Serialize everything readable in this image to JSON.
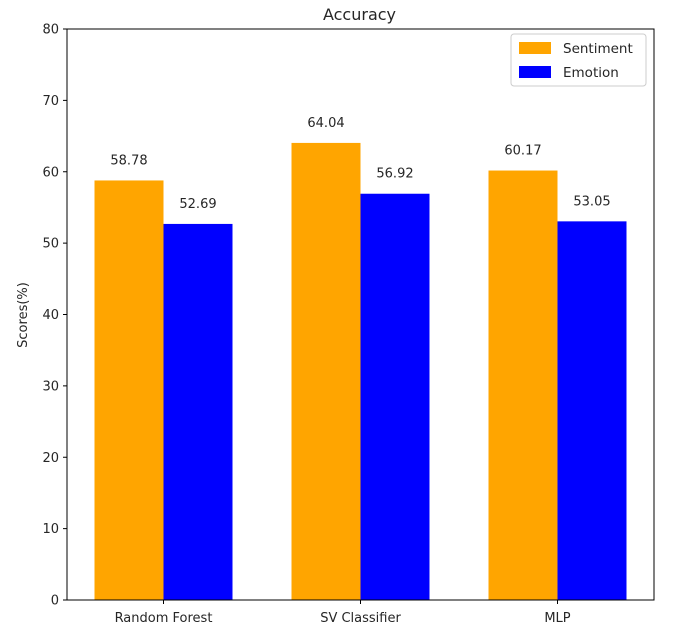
{
  "chart_data": {
    "type": "bar",
    "title": "Accuracy",
    "xlabel": "",
    "ylabel": "Scores(%)",
    "ylim": [
      0,
      80
    ],
    "yticks": [
      "0",
      "10",
      "20",
      "30",
      "40",
      "50",
      "60",
      "70",
      "80"
    ],
    "categories": [
      "Random Forest",
      "SV Classifier",
      "MLP"
    ],
    "series": [
      {
        "name": "Sentiment",
        "color": "#ffa500",
        "values": [
          58.78,
          64.04,
          60.17
        ],
        "labels": [
          "58.78",
          "64.04",
          "60.17"
        ]
      },
      {
        "name": "Emotion",
        "color": "#0000ff",
        "values": [
          52.69,
          56.92,
          53.05
        ],
        "labels": [
          "52.69",
          "56.92",
          "53.05"
        ]
      }
    ],
    "legend_position": "top-right",
    "grid": false
  }
}
